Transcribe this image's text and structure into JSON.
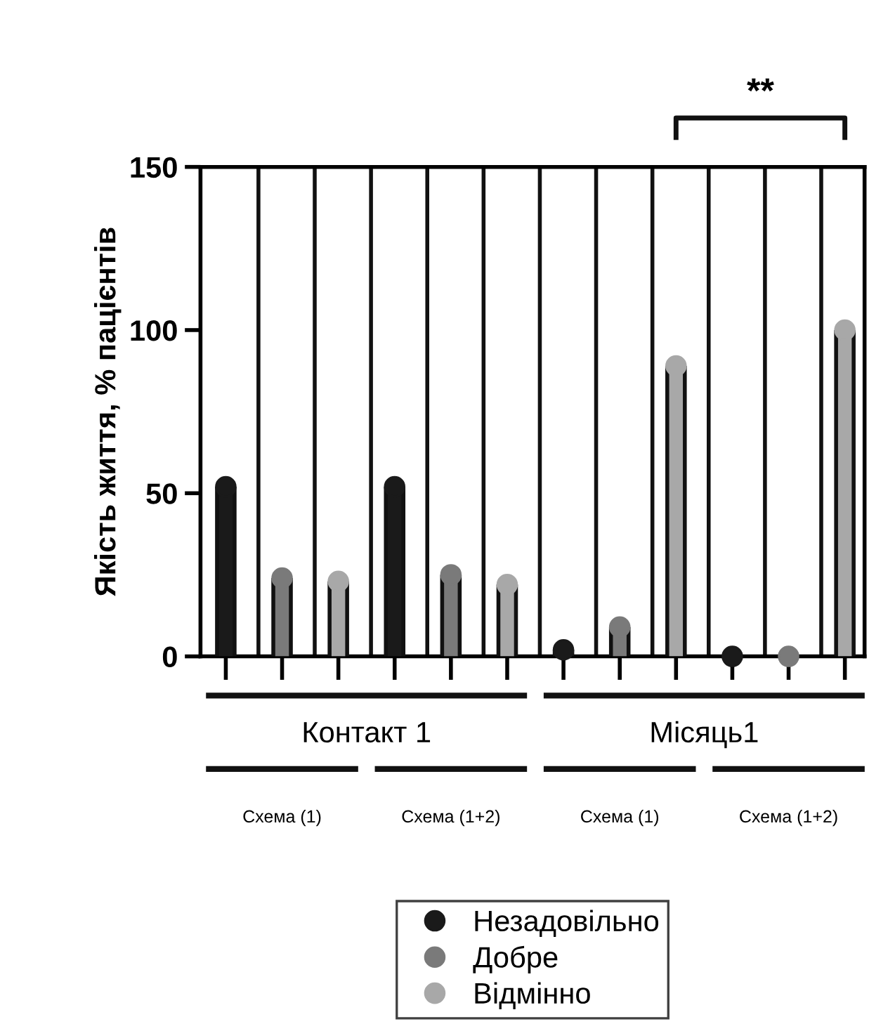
{
  "chart_data": {
    "type": "lollipop",
    "ylabel": "Якість життя, % пацієнтів",
    "categories": [
      null,
      null,
      null,
      null,
      null,
      null,
      null,
      null,
      null,
      null,
      null,
      null
    ],
    "series": [
      {
        "name": "Незадовільно",
        "color": "#1a1a1a",
        "values": [
          52,
          null,
          null,
          52,
          null,
          null,
          2,
          null,
          null,
          0,
          null,
          null
        ]
      },
      {
        "name": "Добре",
        "color": "#7a7a7a",
        "values": [
          null,
          24,
          null,
          null,
          25,
          null,
          null,
          9,
          null,
          null,
          0,
          null
        ]
      },
      {
        "name": "Відмінно",
        "color": "#a8a8a8",
        "values": [
          null,
          null,
          23,
          null,
          null,
          22,
          null,
          null,
          89,
          null,
          null,
          100
        ]
      }
    ],
    "ylim": [
      0,
      150
    ],
    "yticks": [
      0,
      50,
      100,
      150
    ],
    "grid": "x",
    "marker": "circle",
    "legend": "bottom",
    "annotations": [
      "Контакт 1",
      "Місяць1",
      "Схема (1)",
      "Схема (1+2)",
      "Схема (1)",
      "Схема (1+2)",
      "**"
    ]
  }
}
